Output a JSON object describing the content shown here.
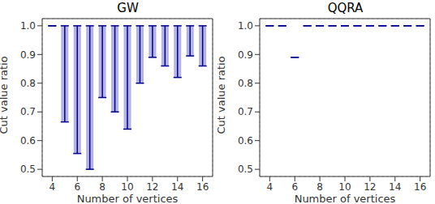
{
  "chart_data": [
    {
      "type": "violin",
      "title": "GW",
      "xlabel": "Number of vertices",
      "ylabel": "Cut value ratio",
      "x": [
        4,
        5,
        6,
        7,
        8,
        9,
        10,
        11,
        12,
        13,
        14,
        15,
        16
      ],
      "min": [
        1.0,
        0.665,
        0.555,
        0.5,
        0.75,
        0.7,
        0.64,
        0.8,
        0.89,
        0.86,
        0.82,
        0.895,
        0.86
      ],
      "max": [
        1.0,
        1.0,
        1.0,
        1.0,
        1.0,
        1.0,
        1.0,
        1.0,
        1.0,
        1.0,
        1.0,
        1.0,
        1.0
      ],
      "color": "#00008b",
      "xlim": [
        3.2,
        16.8
      ],
      "xticks": [
        4,
        6,
        8,
        10,
        12,
        14,
        16
      ],
      "ylim": [
        0.475,
        1.025
      ],
      "yticks": [
        0.5,
        0.6,
        0.7,
        0.8,
        0.9,
        {
          "value": 1,
          "label": "1.0"
        }
      ],
      "grid": true
    },
    {
      "type": "violin",
      "title": "QQRA",
      "xlabel": "Number of vertices",
      "ylabel": "Cut value ratio",
      "x": [
        4,
        5,
        6,
        7,
        8,
        9,
        10,
        11,
        12,
        13,
        14,
        15,
        16
      ],
      "min": [
        1.0,
        1.0,
        0.89,
        1.0,
        1.0,
        1.0,
        1.0,
        1.0,
        1.0,
        1.0,
        1.0,
        1.0,
        1.0
      ],
      "max": [
        1.0,
        1.0,
        0.89,
        1.0,
        1.0,
        1.0,
        1.0,
        1.0,
        1.0,
        1.0,
        1.0,
        1.0,
        1.0
      ],
      "color": "#00008b",
      "xlim": [
        3.2,
        16.8
      ],
      "xticks": [
        4,
        6,
        8,
        10,
        12,
        14,
        16
      ],
      "ylim": [
        0.475,
        1.025
      ],
      "yticks": [
        0.5,
        0.6,
        0.7,
        0.8,
        0.9,
        {
          "value": 1,
          "label": "1.0"
        }
      ],
      "grid": true
    }
  ]
}
